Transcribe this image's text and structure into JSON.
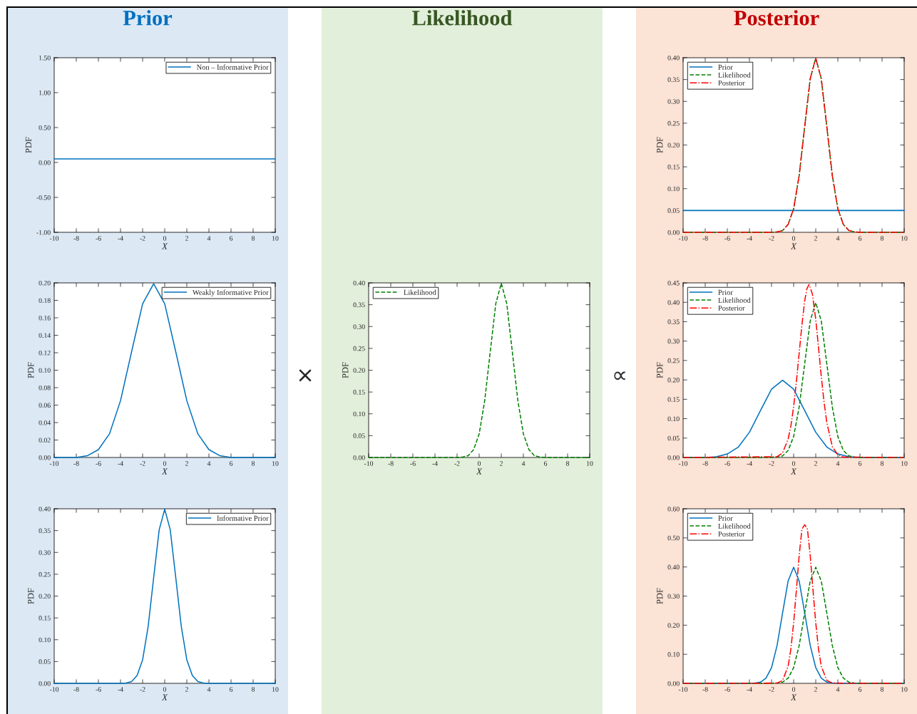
{
  "chart_data": [
    {
      "type": "line",
      "title": "Prior",
      "xlabel": "X",
      "ylabel": "PDF",
      "xlim": [
        -10,
        10
      ],
      "xticks": [
        -10,
        -8,
        -6,
        -4,
        -2,
        0,
        2,
        4,
        6,
        8,
        10
      ],
      "ylim": [
        -1,
        1.5
      ],
      "yticks": [
        {
          "value": -1,
          "label": "-1.00"
        },
        {
          "value": -0.5,
          "label": "-0.50"
        },
        {
          "value": 0,
          "label": "0.00"
        },
        {
          "value": 0.5,
          "label": "0.50"
        },
        {
          "value": 1,
          "label": "1.00"
        },
        {
          "value": 1.5,
          "label": "1.50"
        }
      ],
      "legend": "top right",
      "grid": false,
      "series": [
        {
          "name": "Non – Informative Prior",
          "color": "#0072bd",
          "line_style": "solid",
          "x": [
            -10,
            10
          ],
          "values": [
            0.05,
            0.05
          ]
        }
      ]
    },
    {
      "type": "line",
      "xlabel": "X",
      "ylabel": "PDF",
      "xlim": [
        -10,
        10
      ],
      "xticks": [
        -10,
        -8,
        -6,
        -4,
        -2,
        0,
        2,
        4,
        6,
        8,
        10
      ],
      "ylim": [
        0,
        0.2
      ],
      "yticks": [
        {
          "value": 0,
          "label": "0.00"
        },
        {
          "value": 0.02,
          "label": "0.02"
        },
        {
          "value": 0.04,
          "label": "0.04"
        },
        {
          "value": 0.06,
          "label": "0.06"
        },
        {
          "value": 0.08,
          "label": "0.08"
        },
        {
          "value": 0.1,
          "label": "0.10"
        },
        {
          "value": 0.12,
          "label": "0.12"
        },
        {
          "value": 0.14,
          "label": "0.14"
        },
        {
          "value": 0.16,
          "label": "0.16"
        },
        {
          "value": 0.18,
          "label": "0.18"
        },
        {
          "value": 0.2,
          "label": "0.20"
        }
      ],
      "legend": "top right",
      "grid": false,
      "series": [
        {
          "name": "Weakly Informative Prior",
          "color": "#0072bd",
          "line_style": "solid",
          "x": [
            -10,
            -9,
            -8,
            -7,
            -6,
            -5,
            -4,
            -3,
            -2,
            -1,
            0,
            1,
            2,
            3,
            4,
            5,
            6,
            7,
            8,
            9,
            10
          ],
          "values": [
            0,
            0,
            0,
            0.002,
            0.009,
            0.027,
            0.065,
            0.121,
            0.176,
            0.199,
            0.176,
            0.121,
            0.065,
            0.027,
            0.009,
            0.002,
            0,
            0,
            0,
            0,
            0
          ]
        }
      ]
    },
    {
      "type": "line",
      "xlabel": "X",
      "ylabel": "PDF",
      "xlim": [
        -10,
        10
      ],
      "xticks": [
        -10,
        -8,
        -6,
        -4,
        -2,
        0,
        2,
        4,
        6,
        8,
        10
      ],
      "ylim": [
        0,
        0.4
      ],
      "yticks": [
        {
          "value": 0,
          "label": "0.00"
        },
        {
          "value": 0.05,
          "label": "0.05"
        },
        {
          "value": 0.1,
          "label": "0.10"
        },
        {
          "value": 0.15,
          "label": "0.15"
        },
        {
          "value": 0.2,
          "label": "0.20"
        },
        {
          "value": 0.25,
          "label": "0.25"
        },
        {
          "value": 0.3,
          "label": "0.30"
        },
        {
          "value": 0.35,
          "label": "0.35"
        },
        {
          "value": 0.4,
          "label": "0.40"
        }
      ],
      "legend": "top right",
      "grid": false,
      "series": [
        {
          "name": "Informative Prior",
          "color": "#0072bd",
          "line_style": "solid",
          "x": [
            -10,
            -4,
            -3.5,
            -3,
            -2.5,
            -2,
            -1.5,
            -1,
            -0.5,
            0,
            0.5,
            1,
            1.5,
            2,
            2.5,
            3,
            3.5,
            4,
            10
          ],
          "values": [
            0,
            0,
            0.001,
            0.004,
            0.018,
            0.054,
            0.13,
            0.242,
            0.352,
            0.399,
            0.352,
            0.242,
            0.13,
            0.054,
            0.018,
            0.004,
            0.001,
            0,
            0
          ]
        }
      ]
    },
    {
      "type": "line",
      "title": "Likelihood",
      "annotations": [
        "×",
        "∝"
      ],
      "xlabel": "X",
      "ylabel": "PDF",
      "xlim": [
        -10,
        10
      ],
      "xticks": [
        -10,
        -8,
        -6,
        -4,
        -2,
        0,
        2,
        4,
        6,
        8,
        10
      ],
      "ylim": [
        0,
        0.4
      ],
      "yticks": [
        {
          "value": 0,
          "label": "0.00"
        },
        {
          "value": 0.05,
          "label": "0.05"
        },
        {
          "value": 0.1,
          "label": "0.10"
        },
        {
          "value": 0.15,
          "label": "0.15"
        },
        {
          "value": 0.2,
          "label": "0.20"
        },
        {
          "value": 0.25,
          "label": "0.25"
        },
        {
          "value": 0.3,
          "label": "0.30"
        },
        {
          "value": 0.35,
          "label": "0.35"
        },
        {
          "value": 0.4,
          "label": "0.40"
        }
      ],
      "legend": "top left",
      "grid": false,
      "series": [
        {
          "name": "Likelihood",
          "color": "#008000",
          "line_style": "dashed",
          "x": [
            -10,
            -2,
            -1.5,
            -1,
            -0.5,
            0,
            0.5,
            1,
            1.5,
            2,
            2.5,
            3,
            3.5,
            4,
            4.5,
            5,
            5.5,
            6,
            10
          ],
          "values": [
            0,
            0,
            0.001,
            0.004,
            0.018,
            0.054,
            0.13,
            0.242,
            0.352,
            0.399,
            0.352,
            0.242,
            0.13,
            0.054,
            0.018,
            0.004,
            0.001,
            0,
            0
          ]
        }
      ]
    },
    {
      "type": "line",
      "title": "Posterior",
      "xlabel": "X",
      "ylabel": "PDF",
      "xlim": [
        -10,
        10
      ],
      "xticks": [
        -10,
        -8,
        -6,
        -4,
        -2,
        0,
        2,
        4,
        6,
        8,
        10
      ],
      "ylim": [
        0,
        0.4
      ],
      "yticks": [
        {
          "value": 0,
          "label": "0.00"
        },
        {
          "value": 0.05,
          "label": "0.05"
        },
        {
          "value": 0.1,
          "label": "0.10"
        },
        {
          "value": 0.15,
          "label": "0.15"
        },
        {
          "value": 0.2,
          "label": "0.20"
        },
        {
          "value": 0.25,
          "label": "0.25"
        },
        {
          "value": 0.3,
          "label": "0.30"
        },
        {
          "value": 0.35,
          "label": "0.35"
        },
        {
          "value": 0.4,
          "label": "0.40"
        }
      ],
      "legend": "top left",
      "grid": false,
      "series": [
        {
          "name": "Prior",
          "color": "#0072bd",
          "line_style": "solid",
          "x": [
            -10,
            10
          ],
          "values": [
            0.05,
            0.05
          ]
        },
        {
          "name": "Likelihood",
          "color": "#008000",
          "line_style": "dashed",
          "x": [
            -10,
            -2,
            -1.5,
            -1,
            -0.5,
            0,
            0.5,
            1,
            1.5,
            2,
            2.5,
            3,
            3.5,
            4,
            4.5,
            5,
            5.5,
            6,
            10
          ],
          "values": [
            0,
            0,
            0.001,
            0.004,
            0.018,
            0.054,
            0.13,
            0.242,
            0.352,
            0.399,
            0.352,
            0.242,
            0.13,
            0.054,
            0.018,
            0.004,
            0.001,
            0,
            0
          ]
        },
        {
          "name": "Posterior",
          "color": "#ff0000",
          "line_style": "dashdot",
          "x": [
            -10,
            -2,
            -1.5,
            -1,
            -0.5,
            0,
            0.5,
            1,
            1.5,
            2,
            2.5,
            3,
            3.5,
            4,
            4.5,
            5,
            5.5,
            6,
            10
          ],
          "values": [
            0,
            0,
            0.001,
            0.004,
            0.018,
            0.054,
            0.13,
            0.242,
            0.352,
            0.399,
            0.352,
            0.242,
            0.13,
            0.054,
            0.018,
            0.004,
            0.001,
            0,
            0
          ]
        }
      ]
    },
    {
      "type": "line",
      "xlabel": "X",
      "ylabel": "PDF",
      "xlim": [
        -10,
        10
      ],
      "xticks": [
        -10,
        -8,
        -6,
        -4,
        -2,
        0,
        2,
        4,
        6,
        8,
        10
      ],
      "ylim": [
        0,
        0.45
      ],
      "yticks": [
        {
          "value": 0,
          "label": "0.00"
        },
        {
          "value": 0.05,
          "label": "0.05"
        },
        {
          "value": 0.1,
          "label": "0.10"
        },
        {
          "value": 0.15,
          "label": "0.15"
        },
        {
          "value": 0.2,
          "label": "0.20"
        },
        {
          "value": 0.25,
          "label": "0.25"
        },
        {
          "value": 0.3,
          "label": "0.30"
        },
        {
          "value": 0.35,
          "label": "0.35"
        },
        {
          "value": 0.4,
          "label": "0.40"
        },
        {
          "value": 0.45,
          "label": "0.45"
        }
      ],
      "legend": "top left",
      "grid": false,
      "series": [
        {
          "name": "Prior",
          "color": "#0072bd",
          "line_style": "solid",
          "x": [
            -10,
            -9,
            -8,
            -7,
            -6,
            -5,
            -4,
            -3,
            -2,
            -1,
            0,
            1,
            2,
            3,
            4,
            5,
            6,
            7,
            8,
            9,
            10
          ],
          "values": [
            0,
            0,
            0,
            0.002,
            0.009,
            0.027,
            0.065,
            0.121,
            0.176,
            0.199,
            0.176,
            0.121,
            0.065,
            0.027,
            0.009,
            0.002,
            0,
            0,
            0,
            0,
            0
          ]
        },
        {
          "name": "Likelihood",
          "color": "#008000",
          "line_style": "dashed",
          "x": [
            -10,
            -2,
            -1.5,
            -1,
            -0.5,
            0,
            0.5,
            1,
            1.5,
            2,
            2.5,
            3,
            3.5,
            4,
            4.5,
            5,
            5.5,
            6,
            10
          ],
          "values": [
            0,
            0,
            0.001,
            0.004,
            0.018,
            0.054,
            0.13,
            0.242,
            0.352,
            0.399,
            0.352,
            0.242,
            0.13,
            0.054,
            0.018,
            0.004,
            0.001,
            0,
            0
          ]
        },
        {
          "name": "Posterior",
          "color": "#ff0000",
          "line_style": "dashdot",
          "x": [
            -10,
            -1.5,
            -1,
            -0.5,
            -0.25,
            0,
            0.25,
            0.5,
            0.75,
            1,
            1.2,
            1.4,
            1.7,
            2,
            2.25,
            2.5,
            2.75,
            3,
            3.5,
            4,
            4.5,
            10
          ],
          "values": [
            0,
            0.002,
            0.012,
            0.047,
            0.081,
            0.131,
            0.195,
            0.269,
            0.342,
            0.404,
            0.435,
            0.446,
            0.421,
            0.356,
            0.284,
            0.209,
            0.143,
            0.09,
            0.028,
            0.007,
            0.001,
            0
          ]
        }
      ]
    },
    {
      "type": "line",
      "xlabel": "X",
      "ylabel": "PDF",
      "xlim": [
        -10,
        10
      ],
      "xticks": [
        -10,
        -8,
        -6,
        -4,
        -2,
        0,
        2,
        4,
        6,
        8,
        10
      ],
      "ylim": [
        0,
        0.6
      ],
      "yticks": [
        {
          "value": 0,
          "label": "0.00"
        },
        {
          "value": 0.1,
          "label": "0.10"
        },
        {
          "value": 0.2,
          "label": "0.20"
        },
        {
          "value": 0.3,
          "label": "0.30"
        },
        {
          "value": 0.4,
          "label": "0.40"
        },
        {
          "value": 0.5,
          "label": "0.50"
        },
        {
          "value": 0.6,
          "label": "0.60"
        }
      ],
      "legend": "top left",
      "grid": false,
      "series": [
        {
          "name": "Prior",
          "color": "#0072bd",
          "line_style": "solid",
          "x": [
            -10,
            -4,
            -3.5,
            -3,
            -2.5,
            -2,
            -1.5,
            -1,
            -0.5,
            0,
            0.5,
            1,
            1.5,
            2,
            2.5,
            3,
            3.5,
            4,
            10
          ],
          "values": [
            0,
            0,
            0.001,
            0.004,
            0.018,
            0.054,
            0.13,
            0.242,
            0.352,
            0.399,
            0.352,
            0.242,
            0.13,
            0.054,
            0.018,
            0.004,
            0.001,
            0,
            0
          ]
        },
        {
          "name": "Likelihood",
          "color": "#008000",
          "line_style": "dashed",
          "x": [
            -10,
            -2,
            -1.5,
            -1,
            -0.5,
            0,
            0.5,
            1,
            1.5,
            2,
            2.5,
            3,
            3.5,
            4,
            4.5,
            5,
            5.5,
            6,
            10
          ],
          "values": [
            0,
            0,
            0.001,
            0.004,
            0.018,
            0.054,
            0.13,
            0.242,
            0.352,
            0.399,
            0.352,
            0.242,
            0.13,
            0.054,
            0.018,
            0.004,
            0.001,
            0,
            0
          ]
        },
        {
          "name": "Posterior",
          "color": "#ff0000",
          "line_style": "dashdot",
          "x": [
            -10,
            -1.5,
            -1,
            -0.5,
            -0.25,
            0,
            0.25,
            0.5,
            0.75,
            1,
            1.25,
            1.5,
            1.75,
            2,
            2.25,
            2.5,
            3,
            3.5,
            10
          ],
          "values": [
            0,
            0.001,
            0.01,
            0.059,
            0.118,
            0.208,
            0.321,
            0.439,
            0.53,
            0.545,
            0.53,
            0.439,
            0.321,
            0.208,
            0.118,
            0.059,
            0.01,
            0.001,
            0
          ]
        }
      ]
    }
  ]
}
